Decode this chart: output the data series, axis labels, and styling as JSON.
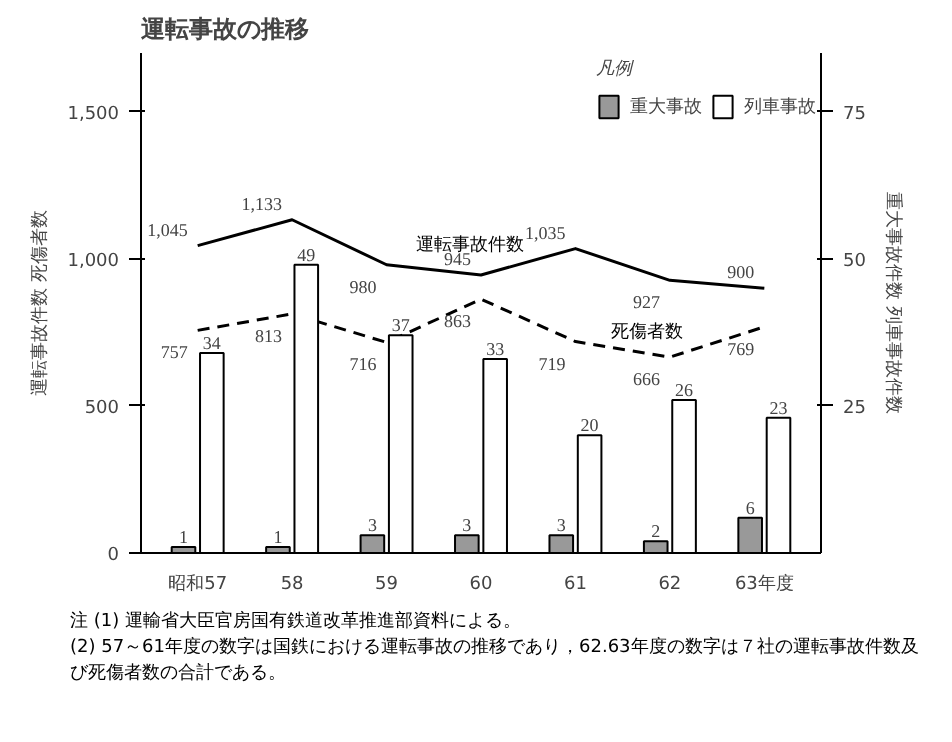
{
  "chart_data": {
    "type": "bar",
    "title": "運転事故の推移",
    "ylabel": "運転事故件数 死傷者数",
    "y2label": "重大事故件数 列車事故件数",
    "legend_title": "凡例",
    "categories": [
      "昭和57",
      "58",
      "59",
      "60",
      "61",
      "62",
      "63年度"
    ],
    "series": [
      {
        "name": "運転事故件数",
        "type": "line",
        "color": "#000000",
        "line_style": "solid",
        "values": [
          1045,
          1133,
          980,
          945,
          1035,
          927,
          900
        ],
        "value_labels": [
          "1,045",
          "1,133",
          "980",
          "945",
          "1,035",
          "927",
          "900"
        ]
      },
      {
        "name": "死傷者数",
        "type": "line",
        "color": "#000000",
        "line_style": "dashed",
        "values": [
          757,
          813,
          716,
          863,
          719,
          666,
          769
        ]
      },
      {
        "name": "重大事故",
        "axis": "y2",
        "color": "#999999",
        "values": [
          1,
          1,
          3,
          3,
          3,
          2,
          6
        ]
      },
      {
        "name": "列車事故",
        "axis": "y2",
        "color": "#ffffff",
        "values": [
          34,
          49,
          37,
          33,
          20,
          26,
          23
        ]
      }
    ],
    "ylim": [
      0,
      1700
    ],
    "yticks": [
      0,
      500,
      {
        "value": 1000,
        "label": "1,000"
      },
      {
        "value": 1500,
        "label": "1,500"
      }
    ],
    "y2lim": [
      0,
      85
    ],
    "y2ticks": [
      25,
      50,
      75
    ],
    "data_labels": true,
    "legend": "top right",
    "grid": false,
    "marker": "none",
    "annotations": [
      "注 (1) 運輸省大臣官房国有鉄道改革推進部資料による。",
      "(2) 57～61年度の数字は国鉄における運転事故の推移であり，62.63年度の数字は７社の運転事故件数及び死傷者数の合計である。"
    ]
  }
}
